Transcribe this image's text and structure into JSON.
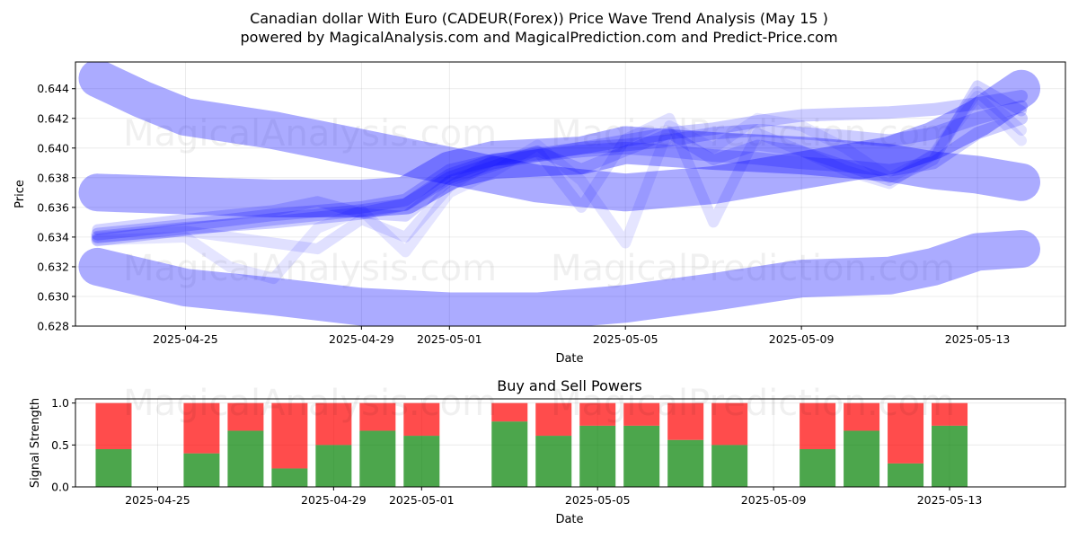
{
  "header": {
    "title_line1": "Canadian dollar With Euro (CADEUR(Forex)) Price Wave Trend Analysis (May 15 )",
    "title_line2": "powered by MagicalAnalysis.com and MagicalPrediction.com and Predict-Price.com"
  },
  "watermarks": {
    "left": "MagicalAnalysis.com",
    "right": "MagicalPrediction.com"
  },
  "colors": {
    "band": "#0000ff",
    "buy": "#008000",
    "sell": "#ff0000"
  },
  "chart_data": [
    {
      "type": "line",
      "title": "",
      "xlabel": "Date",
      "ylabel": "Price",
      "x_tick_labels": [
        "2025-04-25",
        "2025-04-29",
        "2025-05-01",
        "2025-05-05",
        "2025-05-09",
        "2025-05-13"
      ],
      "y_tick_labels": [
        "0.628",
        "0.630",
        "0.632",
        "0.634",
        "0.636",
        "0.638",
        "0.640",
        "0.642",
        "0.644"
      ],
      "xlim": [
        "2025-04-22T12:00",
        "2025-05-15T00:00"
      ],
      "ylim": [
        0.628,
        0.6458
      ],
      "grid": true,
      "series": [
        {
          "x": [
            "2025-04-23",
            "2025-04-24",
            "2025-04-25",
            "2025-04-27",
            "2025-04-29",
            "2025-05-01",
            "2025-05-03",
            "2025-05-05",
            "2025-05-07",
            "2025-05-09",
            "2025-05-11",
            "2025-05-12",
            "2025-05-13",
            "2025-05-14"
          ],
          "y": [
            0.6447,
            0.6433,
            0.6421,
            0.6412,
            0.64,
            0.6388,
            0.6376,
            0.637,
            0.6375,
            0.6385,
            0.6395,
            0.6405,
            0.642,
            0.644
          ]
        },
        {
          "x": [
            "2025-04-23",
            "2025-04-25",
            "2025-04-27",
            "2025-04-29",
            "2025-04-30",
            "2025-05-01",
            "2025-05-02",
            "2025-05-04",
            "2025-05-05",
            "2025-05-07",
            "2025-05-09",
            "2025-05-11",
            "2025-05-12",
            "2025-05-13",
            "2025-05-14"
          ],
          "y": [
            0.637,
            0.6368,
            0.6366,
            0.6366,
            0.6368,
            0.6385,
            0.6392,
            0.6395,
            0.6402,
            0.6398,
            0.6395,
            0.639,
            0.6385,
            0.6382,
            0.6377
          ]
        },
        {
          "x": [
            "2025-04-23",
            "2025-04-25",
            "2025-04-27",
            "2025-04-29",
            "2025-05-01",
            "2025-05-03",
            "2025-05-05",
            "2025-05-07",
            "2025-05-09",
            "2025-05-11",
            "2025-05-12",
            "2025-05-13",
            "2025-05-14"
          ],
          "y": [
            0.632,
            0.6306,
            0.63,
            0.6293,
            0.629,
            0.629,
            0.6295,
            0.6303,
            0.6312,
            0.6314,
            0.632,
            0.633,
            0.6332
          ]
        },
        {
          "x": [
            "2025-04-23",
            "2025-04-25",
            "2025-04-27",
            "2025-04-29",
            "2025-04-30",
            "2025-05-01",
            "2025-05-02",
            "2025-05-03",
            "2025-05-04",
            "2025-05-05",
            "2025-05-06",
            "2025-05-07",
            "2025-05-08",
            "2025-05-09",
            "2025-05-10",
            "2025-05-11",
            "2025-05-12",
            "2025-05-13",
            "2025-05-14"
          ],
          "y": [
            0.634,
            0.6346,
            0.635,
            0.6356,
            0.6362,
            0.6382,
            0.6392,
            0.6395,
            0.64,
            0.6405,
            0.641,
            0.6413,
            0.6418,
            0.6422,
            0.6423,
            0.6424,
            0.6426,
            0.643,
            0.6435
          ]
        },
        {
          "x": [
            "2025-04-23",
            "2025-04-25",
            "2025-04-27",
            "2025-04-29",
            "2025-04-30",
            "2025-05-01",
            "2025-05-02",
            "2025-05-03",
            "2025-05-04",
            "2025-05-05",
            "2025-05-06",
            "2025-05-07",
            "2025-05-08",
            "2025-05-09",
            "2025-05-10",
            "2025-05-11",
            "2025-05-12",
            "2025-05-13",
            "2025-05-14"
          ],
          "y": [
            0.6342,
            0.6348,
            0.6355,
            0.636,
            0.6365,
            0.6385,
            0.6392,
            0.6396,
            0.64,
            0.6402,
            0.6405,
            0.641,
            0.6412,
            0.641,
            0.6408,
            0.6405,
            0.641,
            0.642,
            0.6428
          ]
        },
        {
          "x": [
            "2025-04-23",
            "2025-04-25",
            "2025-04-27",
            "2025-04-29",
            "2025-04-30",
            "2025-05-01",
            "2025-05-02",
            "2025-05-03",
            "2025-05-04",
            "2025-05-05",
            "2025-05-06",
            "2025-05-07",
            "2025-05-08",
            "2025-05-09",
            "2025-05-10",
            "2025-05-11",
            "2025-05-12",
            "2025-05-13",
            "2025-05-14"
          ],
          "y": [
            0.6338,
            0.6345,
            0.6352,
            0.6358,
            0.6362,
            0.638,
            0.639,
            0.6395,
            0.6398,
            0.64,
            0.6398,
            0.6395,
            0.6393,
            0.639,
            0.6388,
            0.6385,
            0.639,
            0.641,
            0.642
          ]
        },
        {
          "x": [
            "2025-04-23",
            "2025-04-25",
            "2025-04-27",
            "2025-04-28",
            "2025-04-29",
            "2025-04-30",
            "2025-05-01",
            "2025-05-02",
            "2025-05-03",
            "2025-05-04",
            "2025-05-05",
            "2025-05-06",
            "2025-05-07",
            "2025-05-08",
            "2025-05-09",
            "2025-05-10",
            "2025-05-11",
            "2025-05-12",
            "2025-05-13",
            "2025-05-14"
          ],
          "y": [
            0.6345,
            0.6352,
            0.6358,
            0.6364,
            0.6356,
            0.6354,
            0.6378,
            0.6388,
            0.6398,
            0.6386,
            0.6398,
            0.641,
            0.6392,
            0.6402,
            0.6398,
            0.6388,
            0.6378,
            0.6392,
            0.6442,
            0.6425
          ]
        },
        {
          "x": [
            "2025-04-23",
            "2025-04-25",
            "2025-04-27",
            "2025-04-28",
            "2025-04-29",
            "2025-04-30",
            "2025-05-01",
            "2025-05-02",
            "2025-05-03",
            "2025-05-04",
            "2025-05-05",
            "2025-05-06",
            "2025-05-07",
            "2025-05-08",
            "2025-05-09",
            "2025-05-10",
            "2025-05-11",
            "2025-05-12",
            "2025-05-13",
            "2025-05-14"
          ],
          "y": [
            0.634,
            0.6344,
            0.6336,
            0.6332,
            0.6352,
            0.634,
            0.6374,
            0.6392,
            0.6398,
            0.636,
            0.6406,
            0.642,
            0.635,
            0.641,
            0.6398,
            0.6385,
            0.6376,
            0.6396,
            0.6438,
            0.6412
          ]
        },
        {
          "x": [
            "2025-04-23",
            "2025-04-25",
            "2025-04-26",
            "2025-04-27",
            "2025-04-28",
            "2025-04-29",
            "2025-04-30",
            "2025-05-01",
            "2025-05-02",
            "2025-05-03",
            "2025-05-04",
            "2025-05-05",
            "2025-05-06",
            "2025-05-07",
            "2025-05-08",
            "2025-05-09",
            "2025-05-10",
            "2025-05-11",
            "2025-05-12",
            "2025-05-13",
            "2025-05-14"
          ],
          "y": [
            0.6338,
            0.634,
            0.632,
            0.6312,
            0.6346,
            0.6358,
            0.633,
            0.637,
            0.6384,
            0.6402,
            0.6378,
            0.6336,
            0.6415,
            0.64,
            0.642,
            0.6415,
            0.64,
            0.638,
            0.6395,
            0.6435,
            0.6405
          ]
        }
      ]
    },
    {
      "type": "bar",
      "title": "Buy and Sell Powers",
      "xlabel": "Date",
      "ylabel": "Signal Strength",
      "x_tick_labels": [
        "2025-04-25",
        "2025-04-29",
        "2025-05-01",
        "2025-05-05",
        "2025-05-09",
        "2025-05-13"
      ],
      "y_tick_labels": [
        "0.0",
        "0.5",
        "1.0"
      ],
      "ylim": [
        0,
        1.05
      ],
      "grid": true,
      "categories": [
        "2025-04-24",
        "2025-04-26",
        "2025-04-27",
        "2025-04-28",
        "2025-04-29",
        "2025-04-30",
        "2025-05-01",
        "2025-05-03",
        "2025-05-04",
        "2025-05-05",
        "2025-05-06",
        "2025-05-07",
        "2025-05-08",
        "2025-05-10",
        "2025-05-11",
        "2025-05-12",
        "2025-05-13"
      ],
      "series": [
        {
          "name": "Buy",
          "values": [
            0.45,
            0.4,
            0.67,
            0.22,
            0.5,
            0.67,
            0.61,
            0.78,
            0.61,
            0.73,
            0.73,
            0.56,
            0.5,
            0.45,
            0.67,
            0.28,
            0.73
          ]
        },
        {
          "name": "Sell",
          "values": [
            0.55,
            0.6,
            0.33,
            0.78,
            0.5,
            0.33,
            0.39,
            0.22,
            0.39,
            0.27,
            0.27,
            0.44,
            0.5,
            0.55,
            0.33,
            0.72,
            0.27
          ]
        }
      ]
    }
  ]
}
